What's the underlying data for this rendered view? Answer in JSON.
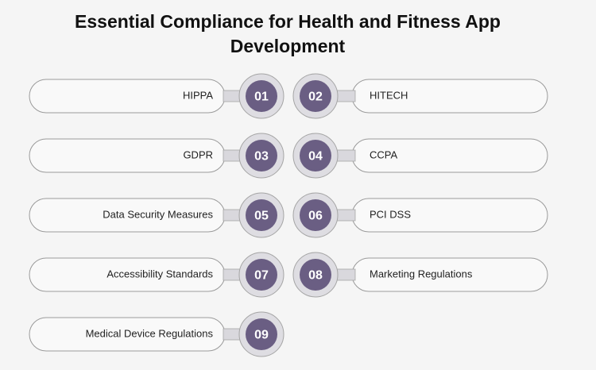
{
  "title": "Essential Compliance for Health and Fitness App Development",
  "items": [
    {
      "number": "01",
      "label": "HIPPA"
    },
    {
      "number": "02",
      "label": "HITECH"
    },
    {
      "number": "03",
      "label": "GDPR"
    },
    {
      "number": "04",
      "label": "CCPA"
    },
    {
      "number": "05",
      "label": "Data Security Measures"
    },
    {
      "number": "06",
      "label": "PCI DSS"
    },
    {
      "number": "07",
      "label": "Accessibility Standards"
    },
    {
      "number": "08",
      "label": "Marketing Regulations"
    },
    {
      "number": "09",
      "label": "Medical Device Regulations"
    }
  ]
}
